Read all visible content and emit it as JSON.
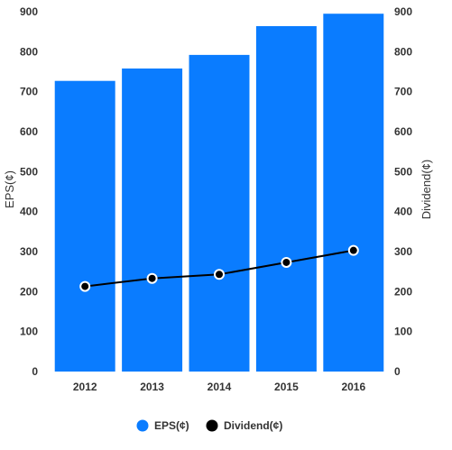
{
  "chart_data": {
    "type": "bar",
    "categories": [
      "2012",
      "2013",
      "2014",
      "2015",
      "2016"
    ],
    "series": [
      {
        "name": "EPS(¢)",
        "type": "bar",
        "axis": "left",
        "color": "#0a7cff",
        "values": [
          727,
          758,
          792,
          864,
          895
        ]
      },
      {
        "name": "Dividend(¢)",
        "type": "line",
        "axis": "right",
        "color": "#000000",
        "values": [
          213,
          233,
          243,
          273,
          303
        ]
      }
    ],
    "ylabel": "EPS(¢)",
    "ylabel_right": "Dividend(¢)",
    "ylim": [
      0,
      900
    ],
    "ylim_right": [
      0,
      900
    ],
    "yticks": [
      "0",
      "100",
      "200",
      "300",
      "400",
      "500",
      "600",
      "700",
      "800",
      "900"
    ],
    "grid": false,
    "legend_position": "bottom"
  }
}
